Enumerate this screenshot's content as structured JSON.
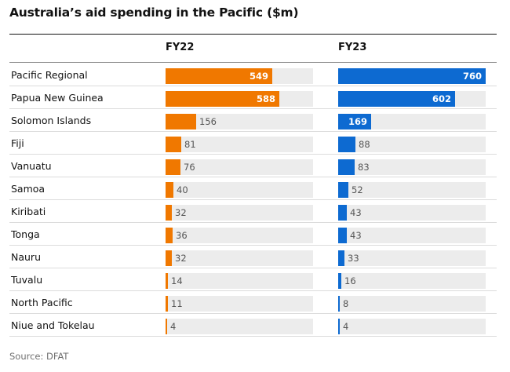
{
  "chart_data": {
    "type": "bar",
    "title": "Australia’s aid spending in the Pacific ($m)",
    "source": "Source: DFAT",
    "categories": [
      "Pacific Regional",
      "Papua New Guinea",
      "Solomon Islands",
      "Fiji",
      "Vanuatu",
      "Samoa",
      "Kiribati",
      "Tonga",
      "Nauru",
      "Tuvalu",
      "North Pacific",
      "Niue and Tokelau"
    ],
    "series": [
      {
        "name": "FY22",
        "color": "#f07800",
        "values": [
          549,
          588,
          156,
          81,
          76,
          40,
          32,
          36,
          32,
          14,
          11,
          4
        ]
      },
      {
        "name": "FY23",
        "color": "#0d6ad1",
        "values": [
          760,
          602,
          169,
          88,
          83,
          52,
          43,
          43,
          33,
          16,
          8,
          4
        ]
      }
    ],
    "xlim": [
      0,
      760
    ],
    "grid": false,
    "legend": "none"
  }
}
